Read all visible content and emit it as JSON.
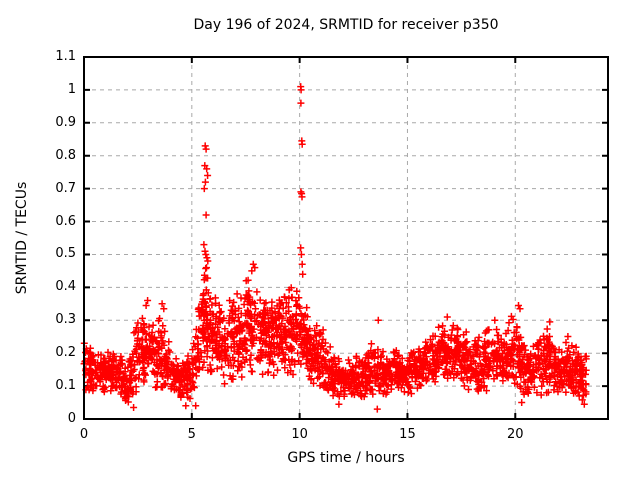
{
  "colors": {
    "background": "#ffffff",
    "text": "#000000",
    "grid": "#a8a8a8",
    "border": "#000000",
    "marker": "#ff0000"
  },
  "chart_data": {
    "type": "scatter",
    "title": "Day 196 of 2024, SRMTID for receiver p350",
    "xlabel": "GPS time / hours",
    "ylabel": "SRMTID / TECUs",
    "xlim": [
      0,
      24.3
    ],
    "ylim": [
      0,
      1.1
    ],
    "xticks": [
      0,
      5,
      10,
      15,
      20
    ],
    "yticks": [
      "0",
      "0.1",
      "0.2",
      "0.3",
      "0.4",
      "0.5",
      "0.6",
      "0.7",
      "0.8",
      "0.9",
      "1",
      "1.1"
    ],
    "grid": true,
    "legend": "none",
    "marker": {
      "shape": "plus",
      "color": "#ff0000",
      "size": 7
    },
    "series": [
      {
        "name": "SRMTID",
        "representation": "dense scatter (~2400 pts) described as half-hour bins [t_start, y_min, y_max, n_points] plus explicit outlier points [t, y]",
        "t_end": 23.3,
        "bins": [
          [
            0.0,
            0.08,
            0.25,
            52
          ],
          [
            0.5,
            0.07,
            0.2,
            50
          ],
          [
            1.0,
            0.08,
            0.21,
            50
          ],
          [
            1.5,
            0.06,
            0.22,
            50
          ],
          [
            2.0,
            0.04,
            0.16,
            48
          ],
          [
            2.5,
            0.07,
            0.33,
            55
          ],
          [
            3.0,
            0.09,
            0.31,
            55
          ],
          [
            3.5,
            0.08,
            0.33,
            52
          ],
          [
            4.0,
            0.07,
            0.24,
            50
          ],
          [
            4.5,
            0.05,
            0.18,
            48
          ],
          [
            5.0,
            0.04,
            0.26,
            50
          ],
          [
            5.5,
            0.14,
            0.47,
            72
          ],
          [
            6.0,
            0.1,
            0.44,
            58
          ],
          [
            6.5,
            0.1,
            0.34,
            52
          ],
          [
            7.0,
            0.11,
            0.37,
            52
          ],
          [
            7.5,
            0.13,
            0.46,
            58
          ],
          [
            8.0,
            0.12,
            0.42,
            58
          ],
          [
            8.5,
            0.14,
            0.4,
            62
          ],
          [
            9.0,
            0.12,
            0.38,
            60
          ],
          [
            9.5,
            0.12,
            0.41,
            60
          ],
          [
            10.0,
            0.12,
            0.43,
            62
          ],
          [
            10.5,
            0.09,
            0.32,
            55
          ],
          [
            11.0,
            0.07,
            0.3,
            52
          ],
          [
            11.5,
            0.06,
            0.21,
            50
          ],
          [
            12.0,
            0.06,
            0.18,
            50
          ],
          [
            12.5,
            0.06,
            0.2,
            50
          ],
          [
            13.0,
            0.05,
            0.21,
            50
          ],
          [
            13.5,
            0.05,
            0.27,
            50
          ],
          [
            14.0,
            0.07,
            0.2,
            50
          ],
          [
            14.5,
            0.08,
            0.22,
            50
          ],
          [
            15.0,
            0.07,
            0.2,
            50
          ],
          [
            15.5,
            0.08,
            0.23,
            50
          ],
          [
            16.0,
            0.09,
            0.27,
            52
          ],
          [
            16.5,
            0.09,
            0.29,
            52
          ],
          [
            17.0,
            0.1,
            0.3,
            55
          ],
          [
            17.5,
            0.09,
            0.29,
            55
          ],
          [
            18.0,
            0.08,
            0.26,
            50
          ],
          [
            18.5,
            0.06,
            0.28,
            50
          ],
          [
            19.0,
            0.09,
            0.29,
            52
          ],
          [
            19.5,
            0.1,
            0.28,
            52
          ],
          [
            20.0,
            0.08,
            0.34,
            55
          ],
          [
            20.5,
            0.07,
            0.22,
            50
          ],
          [
            21.0,
            0.06,
            0.25,
            50
          ],
          [
            21.5,
            0.07,
            0.29,
            52
          ],
          [
            22.0,
            0.06,
            0.22,
            50
          ],
          [
            22.5,
            0.05,
            0.26,
            55
          ],
          [
            23.0,
            0.05,
            0.22,
            40
          ]
        ],
        "outliers": [
          [
            5.62,
            0.83
          ],
          [
            5.66,
            0.82
          ],
          [
            5.6,
            0.77
          ],
          [
            5.69,
            0.76
          ],
          [
            5.73,
            0.74
          ],
          [
            5.63,
            0.72
          ],
          [
            5.58,
            0.7
          ],
          [
            5.66,
            0.62
          ],
          [
            5.56,
            0.53
          ],
          [
            5.61,
            0.51
          ],
          [
            5.65,
            0.5
          ],
          [
            5.7,
            0.49
          ],
          [
            5.74,
            0.48
          ],
          [
            5.68,
            0.46
          ],
          [
            10.05,
            1.01
          ],
          [
            10.07,
            1.0
          ],
          [
            10.06,
            0.96
          ],
          [
            10.1,
            0.845
          ],
          [
            10.12,
            0.835
          ],
          [
            10.06,
            0.69
          ],
          [
            10.09,
            0.685
          ],
          [
            10.11,
            0.675
          ],
          [
            10.05,
            0.52
          ],
          [
            10.08,
            0.5
          ],
          [
            10.12,
            0.47
          ],
          [
            10.14,
            0.44
          ],
          [
            2.95,
            0.36
          ],
          [
            2.88,
            0.345
          ],
          [
            3.62,
            0.35
          ],
          [
            3.7,
            0.335
          ],
          [
            6.75,
            0.36
          ],
          [
            7.1,
            0.38
          ],
          [
            7.85,
            0.47
          ],
          [
            7.92,
            0.46
          ],
          [
            7.78,
            0.45
          ],
          [
            13.65,
            0.3
          ],
          [
            16.85,
            0.31
          ],
          [
            20.15,
            0.345
          ],
          [
            20.22,
            0.335
          ],
          [
            19.05,
            0.3
          ],
          [
            21.6,
            0.295
          ],
          [
            2.3,
            0.035
          ],
          [
            4.72,
            0.04
          ],
          [
            5.18,
            0.04
          ],
          [
            11.82,
            0.045
          ],
          [
            13.6,
            0.03
          ],
          [
            20.3,
            0.05
          ],
          [
            23.2,
            0.045
          ]
        ]
      }
    ]
  }
}
